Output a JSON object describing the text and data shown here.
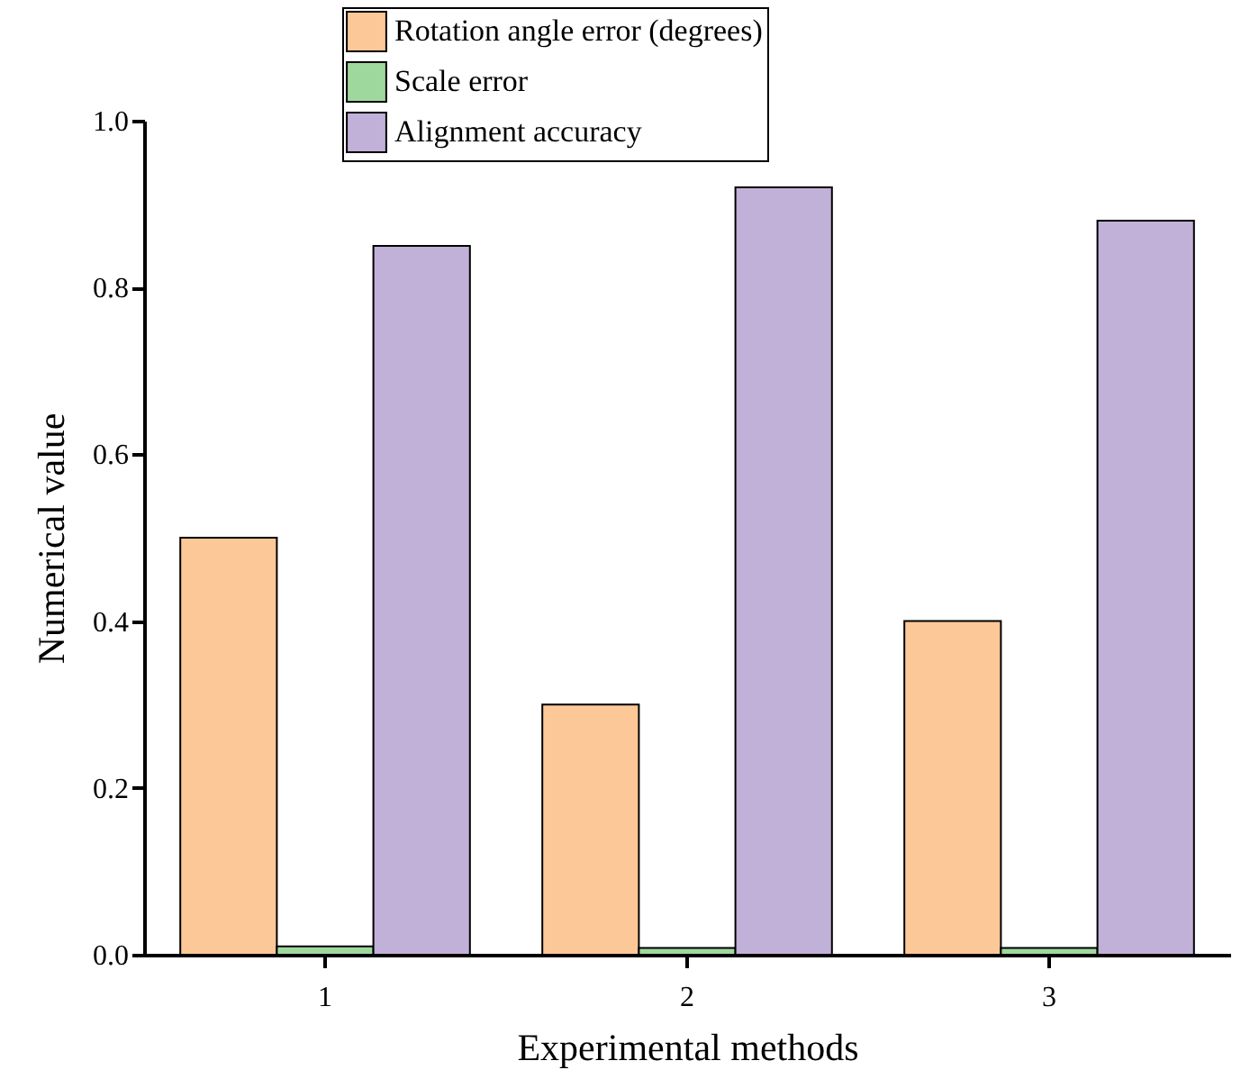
{
  "chart_data": {
    "type": "bar",
    "xlabel": "Experimental methods",
    "ylabel": "Numerical value",
    "categories": [
      "1",
      "2",
      "3"
    ],
    "series": [
      {
        "name": "Rotation angle error (degrees)",
        "color": "#fdc897",
        "values": [
          0.5,
          0.3,
          0.4
        ]
      },
      {
        "name": "Scale error",
        "color": "#9fd89d",
        "values": [
          0.01,
          0.008,
          0.008
        ]
      },
      {
        "name": "Alignment accuracy",
        "color": "#c1b0d7",
        "values": [
          0.85,
          0.92,
          0.88
        ]
      }
    ],
    "ylim": [
      0,
      1.0
    ],
    "yticks": [
      {
        "value": 0,
        "label": "0.0"
      },
      {
        "value": 0.2,
        "label": "0.2"
      },
      {
        "value": 0.4,
        "label": "0.4"
      },
      {
        "value": 0.6,
        "label": "0.6"
      },
      {
        "value": 0.8,
        "label": "0.8"
      },
      {
        "value": 1.0,
        "label": "1.0"
      }
    ],
    "grid": false,
    "legend": "top"
  }
}
